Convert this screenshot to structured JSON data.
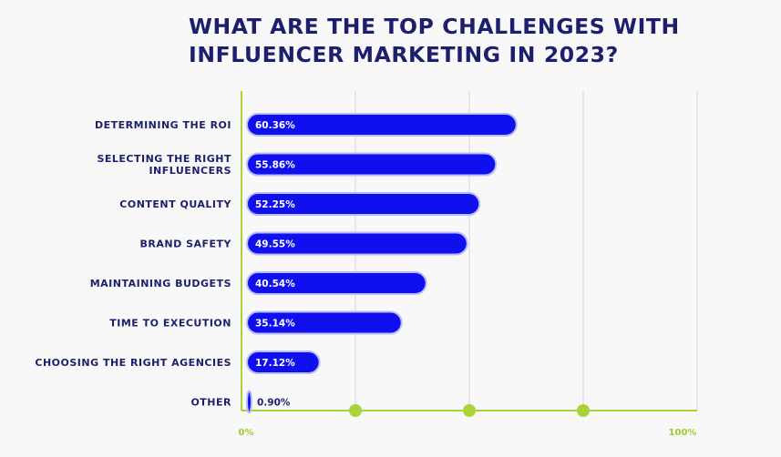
{
  "chart_data": {
    "type": "bar",
    "orientation": "horizontal",
    "title_lines": [
      "WHAT ARE THE TOP CHALLENGES WITH",
      "INFLUENCER MARKETING IN 2023?"
    ],
    "categories": [
      [
        "DETERMINING THE ROI"
      ],
      [
        "SELECTING THE RIGHT",
        "INFLUENCERS"
      ],
      [
        "CONTENT QUALITY"
      ],
      [
        "BRAND SAFETY"
      ],
      [
        "MAINTAINING BUDGETS"
      ],
      [
        "TIME TO EXECUTION"
      ],
      [
        "CHOOSING THE RIGHT AGENCIES"
      ],
      [
        "OTHER"
      ]
    ],
    "values": [
      60.36,
      55.86,
      52.25,
      49.55,
      40.54,
      35.14,
      17.12,
      0.9
    ],
    "value_labels": [
      "60.36%",
      "55.86%",
      "52.25%",
      "49.55%",
      "40.54%",
      "35.14%",
      "17.12%",
      "0.90%"
    ],
    "xlim": [
      0,
      100
    ],
    "tick_values": [
      25,
      50,
      75
    ],
    "x_tick_labels": [
      "0%",
      "100%"
    ],
    "grid": true,
    "colors": {
      "bar": "#1010ee",
      "bar_outline": "#b8bcf5",
      "axis": "#a8d43a",
      "grid": "#dcdcdc",
      "text": "#1b1f6e",
      "value_text_inside": "#ffffff",
      "value_text_outside": "#1b1f6e"
    }
  }
}
